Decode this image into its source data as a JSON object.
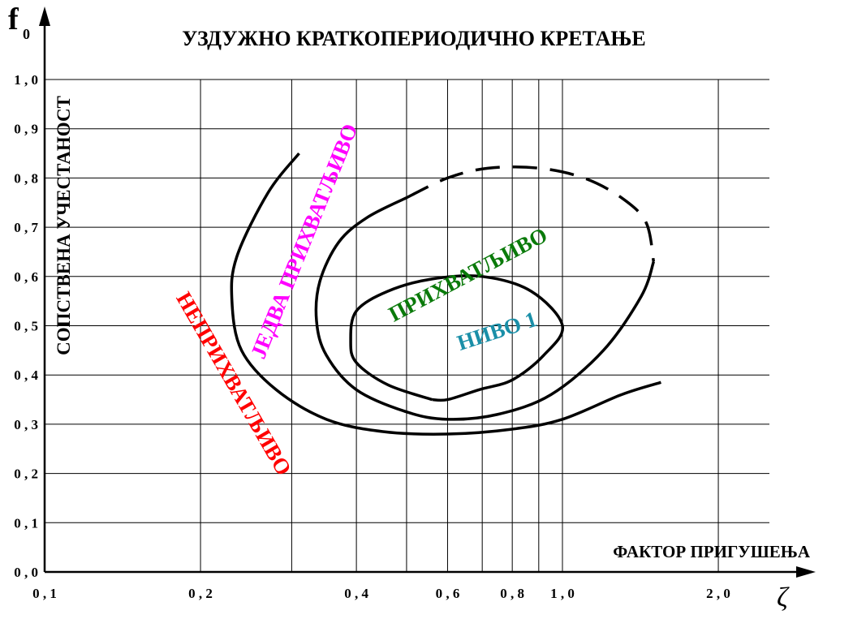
{
  "chart_data": {
    "type": "line",
    "title": "УЗДУЖНО КРАТКОПЕРИОДИЧНО КРЕТАЊЕ",
    "xlabel": "ФАКТОР ПРИГУШЕЊА",
    "xsymbol": "ζ",
    "ylabel": "СОПСТВЕНА УЧЕСТАНОСТ",
    "ysymbol": "f",
    "ysymbol_sub": "0",
    "x_scale": "log",
    "xlim": [
      0.1,
      2.3
    ],
    "ylim": [
      0.0,
      1.0
    ],
    "grid": true,
    "x_gridlines": [
      0.2,
      0.3,
      0.4,
      0.5,
      0.6,
      0.7,
      0.8,
      0.9,
      1.0,
      2.0
    ],
    "x_ticks": [
      {
        "value": 0.1,
        "label": "0,1"
      },
      {
        "value": 0.2,
        "label": "0,2"
      },
      {
        "value": 0.4,
        "label": "0,4"
      },
      {
        "value": 0.6,
        "label": "0,6"
      },
      {
        "value": 0.8,
        "label": "0,8"
      },
      {
        "value": 1.0,
        "label": "1,0"
      },
      {
        "value": 2.0,
        "label": "2,0"
      }
    ],
    "y_ticks": [
      {
        "value": 0.0,
        "label": "0,0"
      },
      {
        "value": 0.1,
        "label": "0,1"
      },
      {
        "value": 0.2,
        "label": "0,2"
      },
      {
        "value": 0.3,
        "label": "0,3"
      },
      {
        "value": 0.4,
        "label": "0,4"
      },
      {
        "value": 0.5,
        "label": "0,5"
      },
      {
        "value": 0.6,
        "label": "0,6"
      },
      {
        "value": 0.7,
        "label": "0,7"
      },
      {
        "value": 0.8,
        "label": "0,8"
      },
      {
        "value": 0.9,
        "label": "0,9"
      },
      {
        "value": 1.0,
        "label": "1,0"
      }
    ],
    "series": [
      {
        "style": "solid",
        "color": "#000000",
        "points": [
          [
            0.56,
            0.35
          ],
          [
            0.46,
            0.38
          ],
          [
            0.4,
            0.425
          ],
          [
            0.39,
            0.47
          ],
          [
            0.4,
            0.53
          ],
          [
            0.46,
            0.57
          ],
          [
            0.56,
            0.595
          ],
          [
            0.7,
            0.6
          ],
          [
            0.87,
            0.57
          ],
          [
            1.0,
            0.5
          ],
          [
            0.92,
            0.44
          ],
          [
            0.8,
            0.39
          ],
          [
            0.69,
            0.37
          ],
          [
            0.6,
            0.35
          ],
          [
            0.56,
            0.35
          ]
        ]
      },
      {
        "style": "solid",
        "color": "#000000",
        "points": [
          [
            0.5,
            0.76
          ],
          [
            0.42,
            0.72
          ],
          [
            0.37,
            0.67
          ],
          [
            0.34,
            0.59
          ],
          [
            0.335,
            0.51
          ],
          [
            0.35,
            0.44
          ],
          [
            0.4,
            0.37
          ],
          [
            0.5,
            0.325
          ],
          [
            0.6,
            0.31
          ],
          [
            0.75,
            0.32
          ],
          [
            0.95,
            0.36
          ],
          [
            1.2,
            0.45
          ],
          [
            1.42,
            0.56
          ],
          [
            1.5,
            0.63
          ]
        ]
      },
      {
        "style": "dashed",
        "color": "#000000",
        "points": [
          [
            0.5,
            0.76
          ],
          [
            0.6,
            0.8
          ],
          [
            0.72,
            0.82
          ],
          [
            0.9,
            0.82
          ],
          [
            1.1,
            0.8
          ],
          [
            1.3,
            0.76
          ],
          [
            1.45,
            0.71
          ],
          [
            1.5,
            0.63
          ]
        ]
      },
      {
        "style": "solid",
        "color": "#000000",
        "points": [
          [
            0.31,
            0.85
          ],
          [
            0.27,
            0.77
          ],
          [
            0.235,
            0.64
          ],
          [
            0.23,
            0.55
          ],
          [
            0.24,
            0.45
          ],
          [
            0.28,
            0.37
          ],
          [
            0.35,
            0.31
          ],
          [
            0.45,
            0.285
          ],
          [
            0.6,
            0.28
          ],
          [
            0.8,
            0.29
          ],
          [
            1.0,
            0.31
          ],
          [
            1.3,
            0.36
          ],
          [
            1.55,
            0.385
          ]
        ]
      }
    ],
    "annotations": [
      {
        "text": "НИВО 1",
        "color": "#1a8fa8",
        "x": 0.75,
        "y": 0.485,
        "angle": -18
      },
      {
        "text": "ПРИХВАТЉИВО",
        "color": "#0a7a0a",
        "x": 0.66,
        "y": 0.6,
        "angle": -28
      },
      {
        "text": "ЈЕДВА ПРИХВАТЉИВО",
        "color": "#ff00ff",
        "x": 0.32,
        "y": 0.67,
        "angle": -68
      },
      {
        "text": "НЕПРИХВАТЉИВО",
        "color": "#ff0000",
        "x": 0.23,
        "y": 0.38,
        "angle": 60
      }
    ]
  }
}
